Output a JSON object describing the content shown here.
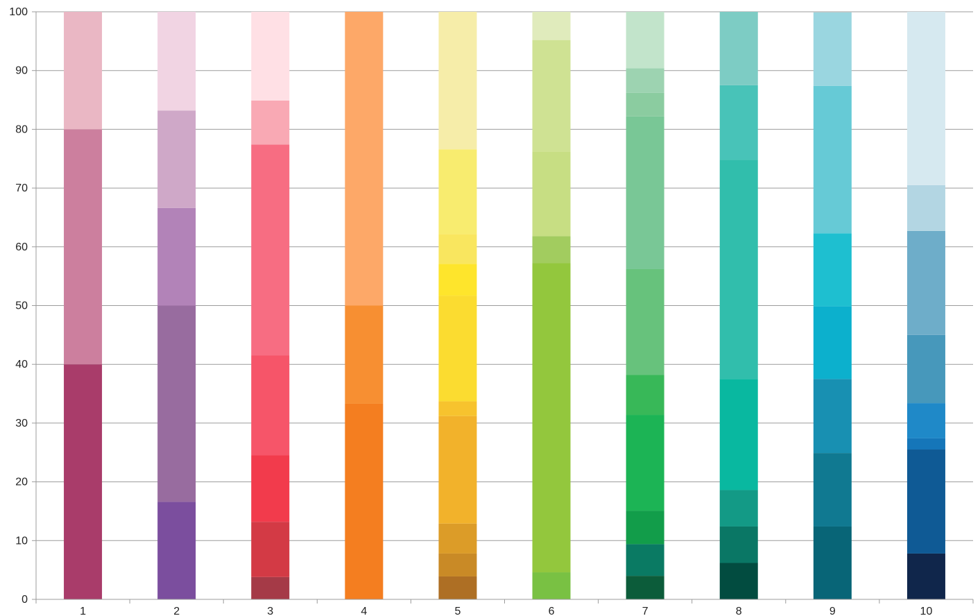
{
  "chart_data": {
    "type": "bar",
    "stacked": true,
    "categories": [
      "1",
      "2",
      "3",
      "4",
      "5",
      "6",
      "7",
      "8",
      "9",
      "10"
    ],
    "ylim": [
      0,
      100
    ],
    "y_ticks": [
      "0",
      "10",
      "20",
      "30",
      "40",
      "50",
      "60",
      "70",
      "80",
      "90",
      "100"
    ],
    "grid": true,
    "stacks": [
      {
        "segments": [
          {
            "value": 40,
            "color": "#A93C6A"
          },
          {
            "value": 40,
            "color": "#CC7F9E"
          },
          {
            "value": 20,
            "color": "#EAB7C4"
          }
        ]
      },
      {
        "segments": [
          {
            "value": 16.6,
            "color": "#7B4E9E"
          },
          {
            "value": 33.4,
            "color": "#986C9F"
          },
          {
            "value": 16.6,
            "color": "#B283B8"
          },
          {
            "value": 16.6,
            "color": "#CFA8C8"
          },
          {
            "value": 16.8,
            "color": "#F1D4E3"
          }
        ]
      },
      {
        "segments": [
          {
            "value": 3.8,
            "color": "#A53A47"
          },
          {
            "value": 9.4,
            "color": "#D33A45"
          },
          {
            "value": 11.3,
            "color": "#F23B4C"
          },
          {
            "value": 17.0,
            "color": "#F65569"
          },
          {
            "value": 35.9,
            "color": "#F76D82"
          },
          {
            "value": 7.5,
            "color": "#F9A9B4"
          },
          {
            "value": 15.1,
            "color": "#FFE0E5"
          }
        ]
      },
      {
        "segments": [
          {
            "value": 33.3,
            "color": "#F47E20"
          },
          {
            "value": 16.7,
            "color": "#F78F32"
          },
          {
            "value": 50.0,
            "color": "#FDA868"
          }
        ]
      },
      {
        "segments": [
          {
            "value": 3.9,
            "color": "#AE6F24"
          },
          {
            "value": 3.9,
            "color": "#C98A26"
          },
          {
            "value": 5.1,
            "color": "#DC9C28"
          },
          {
            "value": 18.3,
            "color": "#F2B22B"
          },
          {
            "value": 2.5,
            "color": "#F7C32E"
          },
          {
            "value": 18.0,
            "color": "#FBDC30"
          },
          {
            "value": 5.4,
            "color": "#FEE52C"
          },
          {
            "value": 5.1,
            "color": "#F9E65F"
          },
          {
            "value": 14.4,
            "color": "#F8EC6F"
          },
          {
            "value": 23.4,
            "color": "#F6EDA9"
          }
        ]
      },
      {
        "segments": [
          {
            "value": 4.6,
            "color": "#79C143"
          },
          {
            "value": 52.6,
            "color": "#93C73D"
          },
          {
            "value": 4.6,
            "color": "#A2CC5F"
          },
          {
            "value": 14.4,
            "color": "#C7DE83"
          },
          {
            "value": 19.0,
            "color": "#CFE293"
          },
          {
            "value": 4.8,
            "color": "#E0EBBC"
          }
        ]
      },
      {
        "segments": [
          {
            "value": 4.0,
            "color": "#0C5C3A"
          },
          {
            "value": 5.4,
            "color": "#0A7A63"
          },
          {
            "value": 5.7,
            "color": "#129D4A"
          },
          {
            "value": 16.3,
            "color": "#1CB455"
          },
          {
            "value": 6.8,
            "color": "#38B858"
          },
          {
            "value": 18.0,
            "color": "#67C27C"
          },
          {
            "value": 26.0,
            "color": "#79C796"
          },
          {
            "value": 4.0,
            "color": "#8BCCA0"
          },
          {
            "value": 4.2,
            "color": "#9DD3B1"
          },
          {
            "value": 9.6,
            "color": "#C2E4CB"
          }
        ]
      },
      {
        "segments": [
          {
            "value": 6.2,
            "color": "#024C40"
          },
          {
            "value": 6.2,
            "color": "#0A7765"
          },
          {
            "value": 6.2,
            "color": "#139A86"
          },
          {
            "value": 18.9,
            "color": "#09B8A0"
          },
          {
            "value": 37.3,
            "color": "#31BEAC"
          },
          {
            "value": 12.7,
            "color": "#48C3B8"
          },
          {
            "value": 12.5,
            "color": "#7DCCC4"
          }
        ]
      },
      {
        "segments": [
          {
            "value": 12.4,
            "color": "#086577"
          },
          {
            "value": 12.5,
            "color": "#107991"
          },
          {
            "value": 12.6,
            "color": "#1890B2"
          },
          {
            "value": 12.4,
            "color": "#0CB0CD"
          },
          {
            "value": 12.4,
            "color": "#1EBFD0"
          },
          {
            "value": 25.1,
            "color": "#66CAD6"
          },
          {
            "value": 12.5,
            "color": "#9AD6E0"
          }
        ]
      },
      {
        "segments": [
          {
            "value": 7.8,
            "color": "#10264B"
          },
          {
            "value": 17.7,
            "color": "#0F5A95"
          },
          {
            "value": 1.9,
            "color": "#1576B9"
          },
          {
            "value": 6.0,
            "color": "#1F89C8"
          },
          {
            "value": 11.6,
            "color": "#4798BB"
          },
          {
            "value": 17.7,
            "color": "#6EADC9"
          },
          {
            "value": 7.8,
            "color": "#B3D6E3"
          },
          {
            "value": 29.5,
            "color": "#D6E9F0"
          }
        ]
      }
    ]
  }
}
